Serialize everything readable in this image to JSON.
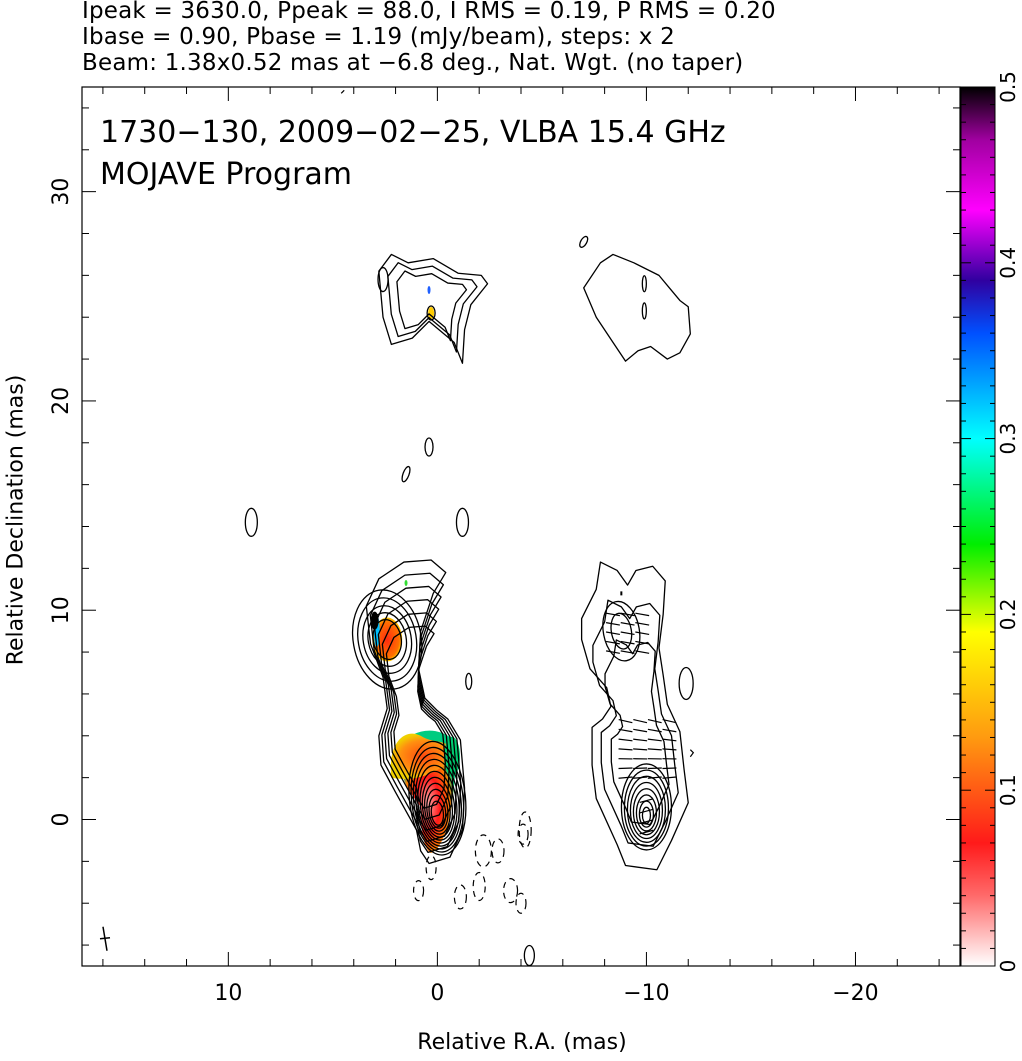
{
  "header": {
    "line1": "Ipeak = 3630.0, Ppeak = 88.0, I RMS = 0.19, P RMS = 0.20",
    "line2": "Ibase = 0.90, Pbase = 1.19 (mJy/beam), steps: x 2",
    "line3": "Beam: 1.38x0.52 mas at −6.8 deg., Nat. Wgt. (no taper)"
  },
  "chart_data": {
    "type": "heatmap",
    "title": "1730−130, 2009−02−25, VLBA 15.4 GHz",
    "subtitle": "MOJAVE Program",
    "xlabel": "Relative R.A. (mas)",
    "ylabel": "Relative Declination (mas)",
    "xlim": [
      17,
      -25
    ],
    "ylim": [
      -7,
      35
    ],
    "xticks": [
      10,
      0,
      -10,
      -20
    ],
    "xtick_labels": [
      "10",
      "0",
      "−10",
      "−20"
    ],
    "yticks": [
      0,
      10,
      20,
      30
    ],
    "ytick_labels": [
      "0",
      "10",
      "20",
      "30"
    ],
    "colorbar": {
      "min": 0,
      "max": 0.5,
      "ticks": [
        0,
        0.1,
        0.2,
        0.3,
        0.4,
        0.5
      ],
      "tick_labels": [
        "0",
        "0.1",
        "0.2",
        "0.3",
        "0.4",
        "0.5"
      ],
      "colors": [
        "#ffffff",
        "#ff2020",
        "#ff9a10",
        "#ffff00",
        "#00ee00",
        "#00ffff",
        "#0040ff",
        "#3000a0",
        "#ff00ff",
        "#a000a0",
        "#000000"
      ]
    },
    "panels": [
      {
        "name": "total-intensity",
        "components": [
          {
            "x": 0,
            "y": 0,
            "levels": 11
          },
          {
            "x": 0,
            "y": 2.5,
            "levels": 6
          },
          {
            "x": 2.4,
            "y": 8.6,
            "levels": 5
          },
          {
            "x": 0.9,
            "y": 24.7,
            "levels": 4
          },
          {
            "x": 8.9,
            "y": 14.2,
            "levels": 1
          },
          {
            "x": -1.2,
            "y": 14.2,
            "levels": 1
          },
          {
            "x": 0.4,
            "y": 17.8,
            "levels": 1
          },
          {
            "x": -1.5,
            "y": 6.6,
            "levels": 1
          }
        ]
      },
      {
        "name": "polarized-intensity",
        "components": [
          {
            "x": -10,
            "y": 0.3,
            "levels": 9
          },
          {
            "x": -9.6,
            "y": 3.4,
            "levels": 4
          },
          {
            "x": -8.9,
            "y": 9.2,
            "levels": 2
          },
          {
            "x": -10,
            "y": 24.3,
            "levels": 1
          },
          {
            "x": -11.9,
            "y": 6.5,
            "levels": 1
          }
        ]
      }
    ],
    "fractional_pol_patches": [
      {
        "x": -0.2,
        "y": 1.6,
        "value": 0.08
      },
      {
        "x": 1.5,
        "y": 3.0,
        "value": 0.14
      },
      {
        "x": 2.4,
        "y": 8.6,
        "value": 0.1
      },
      {
        "x": 3.0,
        "y": 9.5,
        "value": 0.45
      },
      {
        "x": 0.3,
        "y": 24.2,
        "value": 0.2
      }
    ]
  }
}
